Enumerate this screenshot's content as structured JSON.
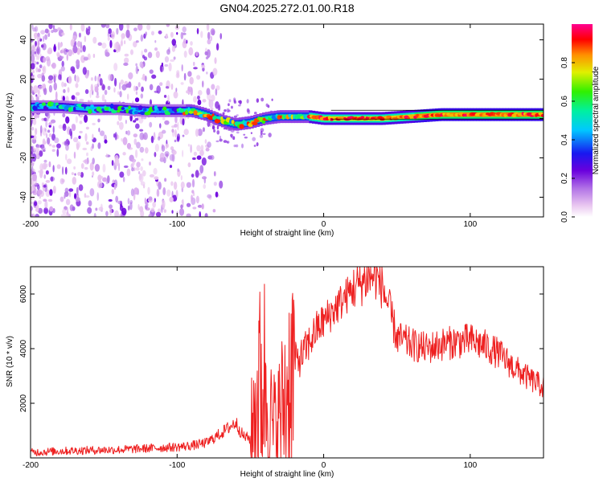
{
  "title": "GN04.2025.272.01.00.R18",
  "chart_data": [
    {
      "type": "heatmap",
      "name": "spectrogram",
      "xlabel": "Height of straight line (km)",
      "ylabel": "Frequency (Hz)",
      "xlim": [
        -200,
        150
      ],
      "ylim": [
        -50,
        48
      ],
      "xticks": [
        -200,
        -100,
        0,
        100
      ],
      "yticks": [
        -40,
        -20,
        0,
        20,
        40
      ],
      "colorbar": {
        "label": "Normalized spectral amplitude",
        "range": [
          0,
          1
        ],
        "ticks": [
          0.0,
          0.2,
          0.4,
          0.6,
          0.8
        ],
        "colors": [
          "#ffffff",
          "#e9c6f0",
          "#b070e6",
          "#6a00dd",
          "#1818f0",
          "#00c8ff",
          "#00f0a0",
          "#30f000",
          "#e0f000",
          "#ff9000",
          "#ff0000",
          "#ff0090"
        ]
      },
      "ridge": {
        "x": [
          -200,
          -180,
          -160,
          -140,
          -120,
          -100,
          -90,
          -80,
          -70,
          -60,
          -50,
          -40,
          -30,
          -20,
          -10,
          0,
          20,
          40,
          60,
          80,
          100,
          120,
          150
        ],
        "frequency": [
          6,
          6,
          5,
          5,
          4,
          4,
          4,
          2,
          -1,
          -3,
          -2,
          0,
          1,
          1,
          1,
          0,
          0,
          0,
          1,
          2,
          2,
          2,
          2
        ]
      }
    },
    {
      "type": "line",
      "name": "snr",
      "xlabel": "Height of straight line (km)",
      "ylabel": "SNR (10 * v/v)",
      "xlim": [
        -200,
        150
      ],
      "ylim": [
        0,
        7000
      ],
      "xticks": [
        -200,
        -100,
        0,
        100
      ],
      "yticks": [
        2000,
        4000,
        6000
      ],
      "color": "#ee2020",
      "series": [
        {
          "name": "SNR",
          "x": [
            -200,
            -180,
            -160,
            -140,
            -120,
            -100,
            -90,
            -80,
            -70,
            -65,
            -60,
            -55,
            -50,
            -45,
            -40,
            -35,
            -30,
            -25,
            -20,
            -15,
            -10,
            -5,
            0,
            10,
            20,
            30,
            35,
            40,
            45,
            50,
            60,
            70,
            80,
            90,
            100,
            110,
            120,
            130,
            140,
            150
          ],
          "values": [
            200,
            250,
            280,
            300,
            350,
            400,
            450,
            550,
            900,
            1100,
            1300,
            800,
            700,
            2500,
            3000,
            1000,
            1500,
            2500,
            3500,
            3700,
            4200,
            4700,
            5000,
            5600,
            6200,
            6600,
            6700,
            6300,
            5400,
            4400,
            4150,
            4000,
            4150,
            4250,
            4300,
            4100,
            3800,
            3300,
            2900,
            2600
          ]
        }
      ]
    }
  ]
}
